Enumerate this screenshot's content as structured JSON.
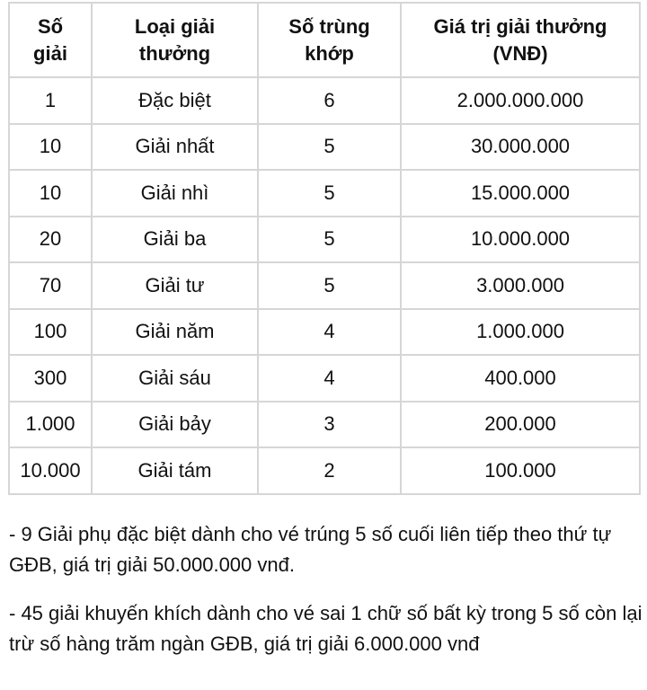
{
  "table": {
    "headers": [
      "Số giải",
      "Loại giải thưởng",
      "Số trùng khớp",
      "Giá trị giải thưởng (VNĐ)"
    ],
    "rows": [
      [
        "1",
        "Đặc biệt",
        "6",
        "2.000.000.000"
      ],
      [
        "10",
        "Giải nhất",
        "5",
        "30.000.000"
      ],
      [
        "10",
        "Giải nhì",
        "5",
        "15.000.000"
      ],
      [
        "20",
        "Giải ba",
        "5",
        "10.000.000"
      ],
      [
        "70",
        "Giải tư",
        "5",
        "3.000.000"
      ],
      [
        "100",
        "Giải năm",
        "4",
        "1.000.000"
      ],
      [
        "300",
        "Giải sáu",
        "4",
        "400.000"
      ],
      [
        "1.000",
        "Giải bảy",
        "3",
        "200.000"
      ],
      [
        "10.000",
        "Giải tám",
        "2",
        "100.000"
      ]
    ]
  },
  "notes": [
    "- 9 Giải phụ đặc biệt dành cho vé trúng 5 số cuối liên tiếp theo thứ tự GĐB, giá trị giải 50.000.000 vnđ.",
    "- 45 giải khuyến khích dành cho vé sai 1 chữ số bất kỳ trong 5 số còn lại trừ số hàng trăm ngàn GĐB, giá trị giải 6.000.000 vnđ"
  ]
}
